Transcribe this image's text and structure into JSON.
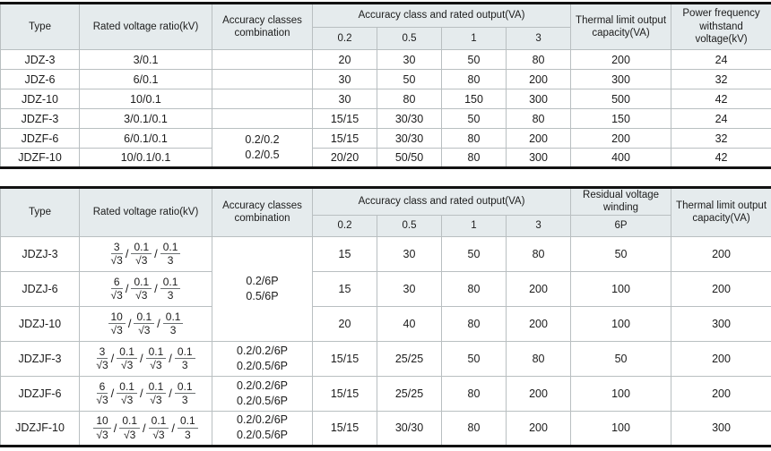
{
  "page": {
    "background": "#ffffff",
    "header_fill": "#e5ebed",
    "grid_color": "#b9bfc1",
    "outer_border_color": "#121212",
    "text_color": "#1c1c1c"
  },
  "table1": {
    "headers": {
      "type": "Type",
      "ratio": "Rated voltage ratio(kV)",
      "combination": "Accuracy classes combination",
      "accuracy_group": "Accuracy class and rated output(VA)",
      "accuracy_classes": [
        "0.2",
        "0.5",
        "1",
        "3"
      ],
      "thermal": "Thermal limit output capacity(VA)",
      "power_freq": "Power frequency withstand voltage(kV)"
    },
    "combination_merged": [
      "0.2/0.2",
      "0.2/0.5"
    ],
    "rows": [
      {
        "type": "JDZ-3",
        "ratio": "3/0.1",
        "outputs": [
          "20",
          "30",
          "50",
          "80"
        ],
        "thermal": "200",
        "power_freq": "24"
      },
      {
        "type": "JDZ-6",
        "ratio": "6/0.1",
        "outputs": [
          "30",
          "50",
          "80",
          "200"
        ],
        "thermal": "300",
        "power_freq": "32"
      },
      {
        "type": "JDZ-10",
        "ratio": "10/0.1",
        "outputs": [
          "30",
          "80",
          "150",
          "300"
        ],
        "thermal": "500",
        "power_freq": "42"
      },
      {
        "type": "JDZF-3",
        "ratio": "3/0.1/0.1",
        "outputs": [
          "15/15",
          "30/30",
          "50",
          "80"
        ],
        "thermal": "150",
        "power_freq": "24"
      },
      {
        "type": "JDZF-6",
        "ratio": "6/0.1/0.1",
        "outputs": [
          "15/15",
          "30/30",
          "80",
          "200"
        ],
        "thermal": "200",
        "power_freq": "32"
      },
      {
        "type": "JDZF-10",
        "ratio": "10/0.1/0.1",
        "outputs": [
          "20/20",
          "50/50",
          "80",
          "300"
        ],
        "thermal": "400",
        "power_freq": "42"
      }
    ]
  },
  "table2": {
    "headers": {
      "type": "Type",
      "ratio": "Rated voltage ratio(kV)",
      "combination": "Accuracy classes combination",
      "accuracy_group": "Accuracy class and rated output(VA)",
      "accuracy_classes": [
        "0.2",
        "0.5",
        "1",
        "3"
      ],
      "residual_group": "Residual voltage winding",
      "residual_class": "6P",
      "thermal": "Thermal limit output capacity(VA)"
    },
    "combination_merged": [
      "0.2/6P",
      "0.5/6P"
    ],
    "rows": [
      {
        "type": "JDZJ-3",
        "ratio": [
          {
            "num": "3",
            "den": "√3"
          },
          {
            "num": "0.1",
            "den": "√3"
          },
          {
            "num": "0.1",
            "den": "3"
          }
        ],
        "outputs": [
          "15",
          "30",
          "50",
          "80"
        ],
        "residual": "50",
        "thermal": "200"
      },
      {
        "type": "JDZJ-6",
        "ratio": [
          {
            "num": "6",
            "den": "√3"
          },
          {
            "num": "0.1",
            "den": "√3"
          },
          {
            "num": "0.1",
            "den": "3"
          }
        ],
        "outputs": [
          "15",
          "30",
          "80",
          "200"
        ],
        "residual": "100",
        "thermal": "200"
      },
      {
        "type": "JDZJ-10",
        "ratio": [
          {
            "num": "10",
            "den": "√3"
          },
          {
            "num": "0.1",
            "den": "√3"
          },
          {
            "num": "0.1",
            "den": "3"
          }
        ],
        "outputs": [
          "20",
          "40",
          "80",
          "200"
        ],
        "residual": "100",
        "thermal": "300"
      },
      {
        "type": "JDZJF-3",
        "ratio": [
          {
            "num": "3",
            "den": "√3"
          },
          {
            "num": "0.1",
            "den": "√3"
          },
          {
            "num": "0.1",
            "den": "√3"
          },
          {
            "num": "0.1",
            "den": "3"
          }
        ],
        "combination": [
          "0.2/0.2/6P",
          "0.2/0.5/6P"
        ],
        "outputs": [
          "15/15",
          "25/25",
          "50",
          "80"
        ],
        "residual": "50",
        "thermal": "200"
      },
      {
        "type": "JDZJF-6",
        "ratio": [
          {
            "num": "6",
            "den": "√3"
          },
          {
            "num": "0.1",
            "den": "√3"
          },
          {
            "num": "0.1",
            "den": "√3"
          },
          {
            "num": "0.1",
            "den": "3"
          }
        ],
        "combination": [
          "0.2/0.2/6P",
          "0.2/0.5/6P"
        ],
        "outputs": [
          "15/15",
          "25/25",
          "80",
          "200"
        ],
        "residual": "100",
        "thermal": "200"
      },
      {
        "type": "JDZJF-10",
        "ratio": [
          {
            "num": "10",
            "den": "√3"
          },
          {
            "num": "0.1",
            "den": "√3"
          },
          {
            "num": "0.1",
            "den": "√3"
          },
          {
            "num": "0.1",
            "den": "3"
          }
        ],
        "combination": [
          "0.2/0.2/6P",
          "0.2/0.5/6P"
        ],
        "outputs": [
          "15/15",
          "30/30",
          "80",
          "200"
        ],
        "residual": "100",
        "thermal": "300"
      }
    ]
  }
}
